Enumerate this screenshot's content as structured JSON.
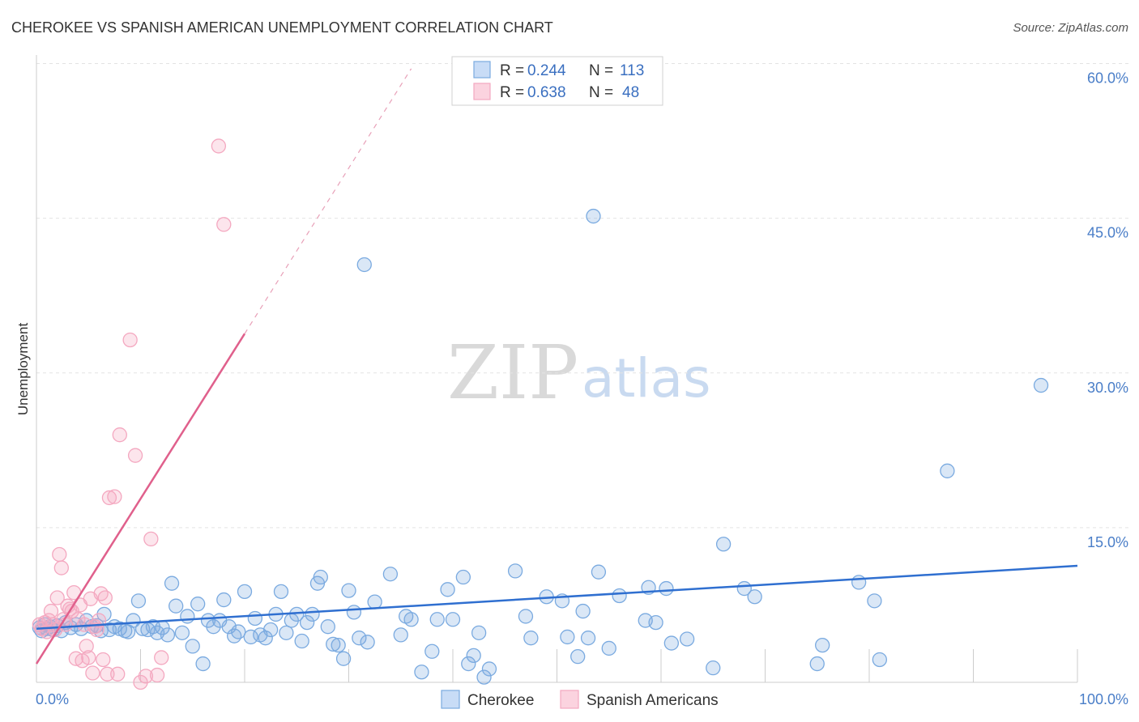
{
  "chart_data": {
    "type": "scatter",
    "title": "CHEROKEE VS SPANISH AMERICAN UNEMPLOYMENT CORRELATION CHART",
    "source": "Source: ZipAtlas.com",
    "ylabel": "Unemployment",
    "xlabel": "",
    "xlim": [
      0,
      100
    ],
    "ylim": [
      0,
      61
    ],
    "x_ticks": [
      "0.0%",
      "100.0%"
    ],
    "y_ticks": [
      {
        "value": 15,
        "label": "15.0%"
      },
      {
        "value": 30,
        "label": "30.0%"
      },
      {
        "value": 45,
        "label": "45.0%"
      },
      {
        "value": 60,
        "label": "60.0%"
      }
    ],
    "grid": true,
    "watermark": {
      "zip": "ZIP",
      "atlas": "atlas"
    },
    "legend": {
      "position": "top-center",
      "rows": [
        {
          "r_label": "R = ",
          "r_value": "0.244",
          "n_label": "N = ",
          "n_value": "113"
        },
        {
          "r_label": "R = ",
          "r_value": "0.638",
          "n_label": "N = ",
          "n_value": "48"
        }
      ]
    },
    "series": [
      {
        "name": "Cherokee",
        "color": "#7aaae0",
        "trend": {
          "x": [
            0,
            100
          ],
          "y": [
            5.2,
            11.3
          ],
          "color": "#2f6fd0"
        },
        "points": [
          [
            0.3,
            5.3
          ],
          [
            0.5,
            5.0
          ],
          [
            0.8,
            5.6
          ],
          [
            1.0,
            5.2
          ],
          [
            1.3,
            5.4
          ],
          [
            1.6,
            5.1
          ],
          [
            2.0,
            5.5
          ],
          [
            2.4,
            5.0
          ],
          [
            2.8,
            5.8
          ],
          [
            3.3,
            5.3
          ],
          [
            3.8,
            5.6
          ],
          [
            4.3,
            5.2
          ],
          [
            4.8,
            6.0
          ],
          [
            5.3,
            5.4
          ],
          [
            5.8,
            5.5
          ],
          [
            6.2,
            5.0
          ],
          [
            6.5,
            6.6
          ],
          [
            7.0,
            5.1
          ],
          [
            7.5,
            5.4
          ],
          [
            8.0,
            5.2
          ],
          [
            8.5,
            5.0
          ],
          [
            8.8,
            4.9
          ],
          [
            9.3,
            6.0
          ],
          [
            9.8,
            7.9
          ],
          [
            10.2,
            5.2
          ],
          [
            10.7,
            5.1
          ],
          [
            11.2,
            5.4
          ],
          [
            11.6,
            4.8
          ],
          [
            12.1,
            5.3
          ],
          [
            12.6,
            4.6
          ],
          [
            13.0,
            9.6
          ],
          [
            13.4,
            7.4
          ],
          [
            14.0,
            4.8
          ],
          [
            14.5,
            6.4
          ],
          [
            15.0,
            3.5
          ],
          [
            15.5,
            7.6
          ],
          [
            16.0,
            1.8
          ],
          [
            16.5,
            6.0
          ],
          [
            17.0,
            5.4
          ],
          [
            17.6,
            6.0
          ],
          [
            18.0,
            8.0
          ],
          [
            18.5,
            5.4
          ],
          [
            19.0,
            4.5
          ],
          [
            19.4,
            4.9
          ],
          [
            20.0,
            8.8
          ],
          [
            20.6,
            4.4
          ],
          [
            21.0,
            6.2
          ],
          [
            21.5,
            4.6
          ],
          [
            22.0,
            4.3
          ],
          [
            22.5,
            5.1
          ],
          [
            23.0,
            6.6
          ],
          [
            23.5,
            8.8
          ],
          [
            24.0,
            4.8
          ],
          [
            24.5,
            6.0
          ],
          [
            25.0,
            6.6
          ],
          [
            25.5,
            4.0
          ],
          [
            26.0,
            5.8
          ],
          [
            26.5,
            6.6
          ],
          [
            27.0,
            9.6
          ],
          [
            27.3,
            10.2
          ],
          [
            28.0,
            5.4
          ],
          [
            28.5,
            3.7
          ],
          [
            29.0,
            3.6
          ],
          [
            29.5,
            2.3
          ],
          [
            30.0,
            8.9
          ],
          [
            30.5,
            6.8
          ],
          [
            31.0,
            4.3
          ],
          [
            31.5,
            40.5
          ],
          [
            31.8,
            3.9
          ],
          [
            32.5,
            7.8
          ],
          [
            34.0,
            10.5
          ],
          [
            35.0,
            4.6
          ],
          [
            35.5,
            6.4
          ],
          [
            36.0,
            6.1
          ],
          [
            37.0,
            1.0
          ],
          [
            38.0,
            3.0
          ],
          [
            38.5,
            6.1
          ],
          [
            39.5,
            9.0
          ],
          [
            40.0,
            6.1
          ],
          [
            41.0,
            10.2
          ],
          [
            41.5,
            1.8
          ],
          [
            42.0,
            2.6
          ],
          [
            42.5,
            4.8
          ],
          [
            43.0,
            0.5
          ],
          [
            43.5,
            1.3
          ],
          [
            46.0,
            10.8
          ],
          [
            47.0,
            6.4
          ],
          [
            47.5,
            4.3
          ],
          [
            49.0,
            8.3
          ],
          [
            50.5,
            7.9
          ],
          [
            51.0,
            4.4
          ],
          [
            52.0,
            2.5
          ],
          [
            52.5,
            6.9
          ],
          [
            53.0,
            4.3
          ],
          [
            53.5,
            45.2
          ],
          [
            54.0,
            10.7
          ],
          [
            55.0,
            3.3
          ],
          [
            56.0,
            8.4
          ],
          [
            58.5,
            6.0
          ],
          [
            58.8,
            9.2
          ],
          [
            59.5,
            5.8
          ],
          [
            60.5,
            9.1
          ],
          [
            61.0,
            3.8
          ],
          [
            62.5,
            4.2
          ],
          [
            65.0,
            1.4
          ],
          [
            66.0,
            13.4
          ],
          [
            68.0,
            9.1
          ],
          [
            69.0,
            8.3
          ],
          [
            75.0,
            1.8
          ],
          [
            75.5,
            3.6
          ],
          [
            79.0,
            9.7
          ],
          [
            80.5,
            7.9
          ],
          [
            81.0,
            2.2
          ],
          [
            87.5,
            20.5
          ],
          [
            96.5,
            28.8
          ]
        ]
      },
      {
        "name": "Spanish Americans",
        "color": "#f4a8c0",
        "trend": {
          "x": [
            0,
            20
          ],
          "y": [
            1.8,
            33.8
          ],
          "dash_to": [
            36,
            59.5
          ],
          "color": "#e0608c"
        },
        "points": [
          [
            0.3,
            5.6
          ],
          [
            0.5,
            5.2
          ],
          [
            0.8,
            5.8
          ],
          [
            1.0,
            4.9
          ],
          [
            1.2,
            6.0
          ],
          [
            1.4,
            6.9
          ],
          [
            1.6,
            5.6
          ],
          [
            1.8,
            5.1
          ],
          [
            2.0,
            8.2
          ],
          [
            2.2,
            12.4
          ],
          [
            2.4,
            11.1
          ],
          [
            2.6,
            6.1
          ],
          [
            2.8,
            5.6
          ],
          [
            3.0,
            7.4
          ],
          [
            3.2,
            7.1
          ],
          [
            3.4,
            6.9
          ],
          [
            3.6,
            8.7
          ],
          [
            3.8,
            2.3
          ],
          [
            4.0,
            6.1
          ],
          [
            4.2,
            7.5
          ],
          [
            4.4,
            2.1
          ],
          [
            4.6,
            5.6
          ],
          [
            4.8,
            3.5
          ],
          [
            5.0,
            2.4
          ],
          [
            5.2,
            8.1
          ],
          [
            5.4,
            0.9
          ],
          [
            5.6,
            5.4
          ],
          [
            5.8,
            5.1
          ],
          [
            6.0,
            6.0
          ],
          [
            6.2,
            8.6
          ],
          [
            6.4,
            2.2
          ],
          [
            6.6,
            8.2
          ],
          [
            6.8,
            0.8
          ],
          [
            7.0,
            17.9
          ],
          [
            7.5,
            18.0
          ],
          [
            7.8,
            0.8
          ],
          [
            8.0,
            24.0
          ],
          [
            9.0,
            33.2
          ],
          [
            9.5,
            22.0
          ],
          [
            10.0,
            0.0
          ],
          [
            10.5,
            0.6
          ],
          [
            11.0,
            13.9
          ],
          [
            11.6,
            0.7
          ],
          [
            12.0,
            2.4
          ],
          [
            17.5,
            52.0
          ],
          [
            18.0,
            44.4
          ]
        ]
      }
    ]
  }
}
